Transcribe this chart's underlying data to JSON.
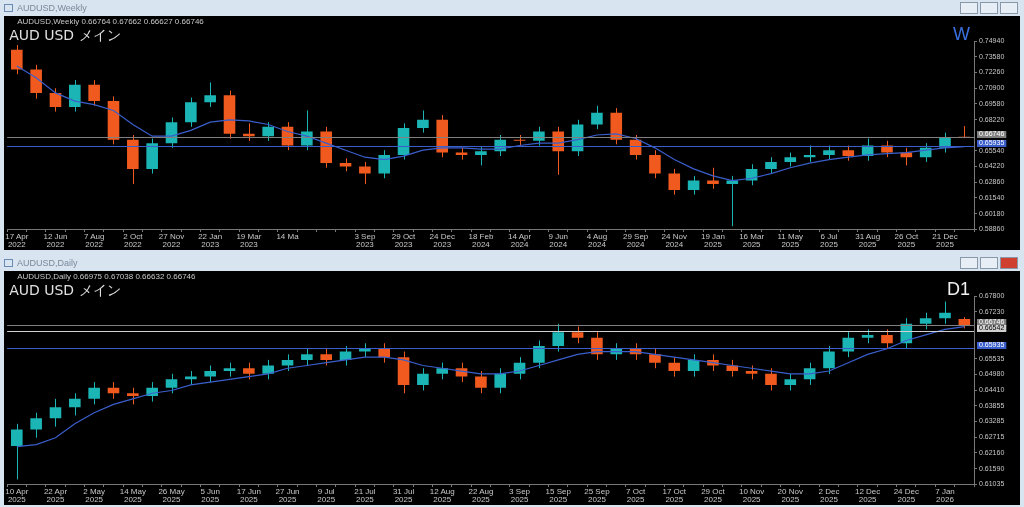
{
  "chart_data": [
    {
      "type": "candlestick",
      "title": "AUDUSD,Weekly",
      "annotations": [
        "AUDUSD,Weekly 0.66764 0.67662 0.66627 0.66746",
        "AUD USD メイン",
        "W"
      ],
      "categories": [
        "17 Apr 2022",
        null,
        "12 Jun 2022",
        null,
        "7 Aug 2022",
        null,
        "2 Oct 2022",
        null,
        "27 Nov 2022",
        null,
        "22 Jan 2023",
        null,
        "19 Mar 2023",
        null,
        "14 Ma",
        null,
        null,
        null,
        "3 Sep 2023",
        null,
        "29 Oct 2023",
        null,
        "24 Dec 2023",
        null,
        "18 Feb 2024",
        null,
        "14 Apr 2024",
        null,
        "9 Jun 2024",
        null,
        "4 Aug 2024",
        null,
        "29 Sep 2024",
        null,
        "24 Nov 2024",
        null,
        "19 Jan 2025",
        null,
        "16 Mar 2025",
        null,
        "11 May 2025",
        null,
        "6 Jul 2025",
        null,
        "31 Aug 2025",
        null,
        "26 Oct 2025",
        null,
        "21 Dec 2025",
        null
      ],
      "ohlc": [
        [
          0.742,
          0.746,
          0.721,
          0.725
        ],
        [
          0.725,
          0.729,
          0.7,
          0.705
        ],
        [
          0.705,
          0.709,
          0.689,
          0.693
        ],
        [
          0.693,
          0.716,
          0.689,
          0.712
        ],
        [
          0.712,
          0.716,
          0.694,
          0.698
        ],
        [
          0.698,
          0.702,
          0.661,
          0.665
        ],
        [
          0.665,
          0.669,
          0.627,
          0.64
        ],
        [
          0.64,
          0.666,
          0.636,
          0.662
        ],
        [
          0.662,
          0.684,
          0.658,
          0.68
        ],
        [
          0.68,
          0.701,
          0.676,
          0.697
        ],
        [
          0.697,
          0.714,
          0.693,
          0.703
        ],
        [
          0.703,
          0.707,
          0.666,
          0.67
        ],
        [
          0.67,
          0.679,
          0.664,
          0.668
        ],
        [
          0.668,
          0.68,
          0.664,
          0.676
        ],
        [
          0.676,
          0.68,
          0.656,
          0.66
        ],
        [
          0.66,
          0.69,
          0.656,
          0.672
        ],
        [
          0.672,
          0.676,
          0.641,
          0.645
        ],
        [
          0.645,
          0.649,
          0.638,
          0.642
        ],
        [
          0.642,
          0.646,
          0.627,
          0.636
        ],
        [
          0.636,
          0.656,
          0.632,
          0.652
        ],
        [
          0.652,
          0.679,
          0.648,
          0.675
        ],
        [
          0.675,
          0.69,
          0.671,
          0.682
        ],
        [
          0.682,
          0.686,
          0.65,
          0.654
        ],
        [
          0.654,
          0.658,
          0.648,
          0.652
        ],
        [
          0.652,
          0.659,
          0.643,
          0.655
        ],
        [
          0.655,
          0.669,
          0.651,
          0.665
        ],
        [
          0.665,
          0.669,
          0.66,
          0.664
        ],
        [
          0.664,
          0.676,
          0.66,
          0.672
        ],
        [
          0.672,
          0.676,
          0.635,
          0.655
        ],
        [
          0.655,
          0.682,
          0.651,
          0.678
        ],
        [
          0.678,
          0.694,
          0.674,
          0.688
        ],
        [
          0.688,
          0.692,
          0.661,
          0.665
        ],
        [
          0.665,
          0.669,
          0.648,
          0.652
        ],
        [
          0.652,
          0.656,
          0.632,
          0.636
        ],
        [
          0.636,
          0.64,
          0.618,
          0.622
        ],
        [
          0.622,
          0.634,
          0.618,
          0.63
        ],
        [
          0.63,
          0.641,
          0.623,
          0.627
        ],
        [
          0.627,
          0.634,
          0.591,
          0.63
        ],
        [
          0.63,
          0.644,
          0.626,
          0.64
        ],
        [
          0.64,
          0.65,
          0.636,
          0.646
        ],
        [
          0.646,
          0.654,
          0.642,
          0.65
        ],
        [
          0.65,
          0.66,
          0.646,
          0.652
        ],
        [
          0.652,
          0.66,
          0.648,
          0.656
        ],
        [
          0.656,
          0.66,
          0.647,
          0.651
        ],
        [
          0.651,
          0.666,
          0.647,
          0.66
        ],
        [
          0.66,
          0.664,
          0.65,
          0.654
        ],
        [
          0.654,
          0.658,
          0.643,
          0.65
        ],
        [
          0.65,
          0.662,
          0.646,
          0.658
        ],
        [
          0.658,
          0.671,
          0.654,
          0.667
        ],
        [
          0.66764,
          0.67662,
          0.66627,
          0.66746
        ]
      ],
      "colors": [
        "#f05a1e",
        "#f05a1e",
        "#f05a1e",
        "#1cb5b5",
        "#f05a1e",
        "#f05a1e",
        "#f05a1e",
        "#1cb5b5",
        "#1cb5b5",
        "#1cb5b5",
        "#1cb5b5",
        "#f05a1e",
        "#f05a1e",
        "#1cb5b5",
        "#f05a1e",
        "#1cb5b5",
        "#f05a1e",
        "#f05a1e",
        "#f05a1e",
        "#1cb5b5",
        "#1cb5b5",
        "#1cb5b5",
        "#f05a1e",
        "#f05a1e",
        "#1cb5b5",
        "#1cb5b5",
        "#f05a1e",
        "#1cb5b5",
        "#f05a1e",
        "#1cb5b5",
        "#1cb5b5",
        "#f05a1e",
        "#f05a1e",
        "#f05a1e",
        "#f05a1e",
        "#1cb5b5",
        "#f05a1e",
        "#1cb5b5",
        "#1cb5b5",
        "#1cb5b5",
        "#1cb5b5",
        "#1cb5b5",
        "#1cb5b5",
        "#f05a1e",
        "#1cb5b5",
        "#f05a1e",
        "#f05a1e",
        "#1cb5b5",
        "#1cb5b5",
        "#f05a1e"
      ],
      "series": [
        {
          "type": "line",
          "color": "#3a5fcd",
          "values": [
            0.728,
            0.718,
            0.705,
            0.698,
            0.695,
            0.69,
            0.678,
            0.668,
            0.668,
            0.673,
            0.68,
            0.682,
            0.681,
            0.678,
            0.672,
            0.668,
            0.662,
            0.656,
            0.65,
            0.648,
            0.651,
            0.656,
            0.658,
            0.658,
            0.657,
            0.657,
            0.66,
            0.662,
            0.662,
            0.665,
            0.669,
            0.67,
            0.666,
            0.658,
            0.648,
            0.64,
            0.634,
            0.63,
            0.632,
            0.636,
            0.641,
            0.645,
            0.648,
            0.65,
            0.652,
            0.653,
            0.654,
            0.656,
            0.658,
            0.659
          ]
        }
      ],
      "ylim": [
        0.5886,
        0.7494
      ],
      "yticks": [
        {
          "value": 0.5886,
          "label": "0.58860"
        },
        {
          "value": 0.6018,
          "label": "0.60180"
        },
        {
          "value": 0.6154,
          "label": "0.61540"
        },
        {
          "value": 0.6286,
          "label": "0.62860"
        },
        {
          "value": 0.6422,
          "label": "0.64220"
        },
        {
          "value": 0.6554,
          "label": "0.65540"
        },
        {
          "value": 0.6822,
          "label": "0.68220"
        },
        {
          "value": 0.6958,
          "label": "0.69580"
        },
        {
          "value": 0.709,
          "label": "0.70900"
        },
        {
          "value": 0.7226,
          "label": "0.72260"
        },
        {
          "value": 0.7358,
          "label": "0.73580"
        },
        {
          "value": 0.7494,
          "label": "0.74940"
        }
      ],
      "ref_lines": [
        {
          "axis": "y",
          "value": 0.66746,
          "label": "0.66746",
          "color": "#808080"
        },
        {
          "axis": "y",
          "value": 0.65935,
          "label": "0.65935",
          "color": "#3a5fcd"
        }
      ]
    },
    {
      "type": "candlestick",
      "title": "AUDUSD,Daily",
      "annotations": [
        "AUDUSD,Daily 0.66975 0.67038 0.66632 0.66746",
        "AUD USD メイン",
        "D1"
      ],
      "categories": [
        "10 Apr 2025",
        null,
        "22 Apr 2025",
        null,
        "2 May 2025",
        null,
        "14 May 2025",
        null,
        "26 May 2025",
        null,
        "5 Jun 2025",
        null,
        "17 Jun 2025",
        null,
        "27 Jun 2025",
        null,
        "9 Jul 2025",
        null,
        "21 Jul 2025",
        null,
        "31 Jul 2025",
        null,
        "12 Aug 2025",
        null,
        "22 Aug 2025",
        null,
        "3 Sep 2025",
        null,
        "15 Sep 2025",
        null,
        "25 Sep 2025",
        null,
        "7 Oct 2025",
        null,
        "17 Oct 2025",
        null,
        "29 Oct 2025",
        null,
        "10 Nov 2025",
        null,
        "20 Nov 2025",
        null,
        "2 Dec 2025",
        null,
        "12 Dec 2025",
        null,
        "24 Dec 2025",
        null,
        "7 Jan 2026",
        null
      ],
      "ohlc": [
        [
          0.624,
          0.632,
          0.612,
          0.63
        ],
        [
          0.63,
          0.636,
          0.627,
          0.634
        ],
        [
          0.634,
          0.641,
          0.631,
          0.638
        ],
        [
          0.638,
          0.643,
          0.635,
          0.641
        ],
        [
          0.641,
          0.647,
          0.639,
          0.645
        ],
        [
          0.645,
          0.647,
          0.641,
          0.643
        ],
        [
          0.643,
          0.645,
          0.639,
          0.642
        ],
        [
          0.642,
          0.647,
          0.64,
          0.645
        ],
        [
          0.645,
          0.65,
          0.643,
          0.648
        ],
        [
          0.648,
          0.651,
          0.646,
          0.649
        ],
        [
          0.649,
          0.653,
          0.647,
          0.651
        ],
        [
          0.651,
          0.654,
          0.649,
          0.652
        ],
        [
          0.652,
          0.654,
          0.648,
          0.65
        ],
        [
          0.65,
          0.655,
          0.648,
          0.653
        ],
        [
          0.653,
          0.657,
          0.651,
          0.655
        ],
        [
          0.655,
          0.659,
          0.653,
          0.657
        ],
        [
          0.657,
          0.659,
          0.653,
          0.655
        ],
        [
          0.655,
          0.66,
          0.653,
          0.658
        ],
        [
          0.658,
          0.661,
          0.656,
          0.659
        ],
        [
          0.659,
          0.661,
          0.654,
          0.656
        ],
        [
          0.656,
          0.658,
          0.643,
          0.646
        ],
        [
          0.646,
          0.652,
          0.644,
          0.65
        ],
        [
          0.65,
          0.654,
          0.648,
          0.652
        ],
        [
          0.652,
          0.654,
          0.647,
          0.649
        ],
        [
          0.649,
          0.651,
          0.643,
          0.645
        ],
        [
          0.645,
          0.652,
          0.643,
          0.65
        ],
        [
          0.65,
          0.656,
          0.648,
          0.654
        ],
        [
          0.654,
          0.662,
          0.652,
          0.66
        ],
        [
          0.66,
          0.668,
          0.658,
          0.665
        ],
        [
          0.665,
          0.667,
          0.661,
          0.663
        ],
        [
          0.663,
          0.665,
          0.655,
          0.657
        ],
        [
          0.657,
          0.661,
          0.655,
          0.659
        ],
        [
          0.659,
          0.661,
          0.655,
          0.657
        ],
        [
          0.657,
          0.659,
          0.652,
          0.654
        ],
        [
          0.654,
          0.656,
          0.649,
          0.651
        ],
        [
          0.651,
          0.657,
          0.649,
          0.655
        ],
        [
          0.655,
          0.657,
          0.651,
          0.653
        ],
        [
          0.653,
          0.655,
          0.649,
          0.651
        ],
        [
          0.651,
          0.653,
          0.648,
          0.65
        ],
        [
          0.65,
          0.652,
          0.644,
          0.646
        ],
        [
          0.646,
          0.65,
          0.644,
          0.648
        ],
        [
          0.648,
          0.654,
          0.646,
          0.652
        ],
        [
          0.652,
          0.66,
          0.65,
          0.658
        ],
        [
          0.658,
          0.665,
          0.656,
          0.663
        ],
        [
          0.663,
          0.666,
          0.661,
          0.664
        ],
        [
          0.664,
          0.666,
          0.659,
          0.661
        ],
        [
          0.661,
          0.67,
          0.659,
          0.668
        ],
        [
          0.668,
          0.672,
          0.666,
          0.67
        ],
        [
          0.67,
          0.676,
          0.668,
          0.672
        ],
        [
          0.66975,
          0.67038,
          0.66632,
          0.66746
        ]
      ],
      "colors": [
        "#1cb5b5",
        "#1cb5b5",
        "#1cb5b5",
        "#1cb5b5",
        "#1cb5b5",
        "#f05a1e",
        "#f05a1e",
        "#1cb5b5",
        "#1cb5b5",
        "#1cb5b5",
        "#1cb5b5",
        "#1cb5b5",
        "#f05a1e",
        "#1cb5b5",
        "#1cb5b5",
        "#1cb5b5",
        "#f05a1e",
        "#1cb5b5",
        "#1cb5b5",
        "#f05a1e",
        "#f05a1e",
        "#1cb5b5",
        "#1cb5b5",
        "#f05a1e",
        "#f05a1e",
        "#1cb5b5",
        "#1cb5b5",
        "#1cb5b5",
        "#1cb5b5",
        "#f05a1e",
        "#f05a1e",
        "#1cb5b5",
        "#f05a1e",
        "#f05a1e",
        "#f05a1e",
        "#1cb5b5",
        "#f05a1e",
        "#f05a1e",
        "#f05a1e",
        "#f05a1e",
        "#1cb5b5",
        "#1cb5b5",
        "#1cb5b5",
        "#1cb5b5",
        "#1cb5b5",
        "#f05a1e",
        "#1cb5b5",
        "#1cb5b5",
        "#1cb5b5",
        "#f05a1e"
      ],
      "series": [
        {
          "type": "line",
          "color": "#3a5fcd",
          "values": [
            0.6238,
            0.6245,
            0.627,
            0.632,
            0.636,
            0.639,
            0.641,
            0.643,
            0.644,
            0.646,
            0.647,
            0.648,
            0.649,
            0.65,
            0.652,
            0.653,
            0.654,
            0.655,
            0.656,
            0.656,
            0.655,
            0.653,
            0.652,
            0.651,
            0.65,
            0.65,
            0.651,
            0.653,
            0.655,
            0.657,
            0.658,
            0.658,
            0.658,
            0.657,
            0.656,
            0.655,
            0.654,
            0.653,
            0.652,
            0.651,
            0.65,
            0.65,
            0.651,
            0.654,
            0.657,
            0.659,
            0.662,
            0.664,
            0.666,
            0.667
          ]
        }
      ],
      "ylim": [
        0.61035,
        0.678
      ],
      "yticks": [
        {
          "value": 0.61035,
          "label": "0.61035"
        },
        {
          "value": 0.6159,
          "label": "0.61590"
        },
        {
          "value": 0.6216,
          "label": "0.62160"
        },
        {
          "value": 0.62715,
          "label": "0.62715"
        },
        {
          "value": 0.63285,
          "label": "0.63285"
        },
        {
          "value": 0.63855,
          "label": "0.63855"
        },
        {
          "value": 0.6441,
          "label": "0.64410"
        },
        {
          "value": 0.6498,
          "label": "0.64980"
        },
        {
          "value": 0.65535,
          "label": "0.65535"
        },
        {
          "value": 0.6723,
          "label": "0.67230"
        },
        {
          "value": 0.678,
          "label": "0.67800"
        }
      ],
      "ref_lines": [
        {
          "axis": "y",
          "value": 0.66746,
          "label": "0.66746",
          "color": "#808080"
        },
        {
          "axis": "y",
          "value": 0.66542,
          "label": "0.66542",
          "color": "#d0d0d0"
        },
        {
          "axis": "y",
          "value": 0.65935,
          "label": "0.65935",
          "color": "#3a5fcd"
        }
      ]
    }
  ]
}
